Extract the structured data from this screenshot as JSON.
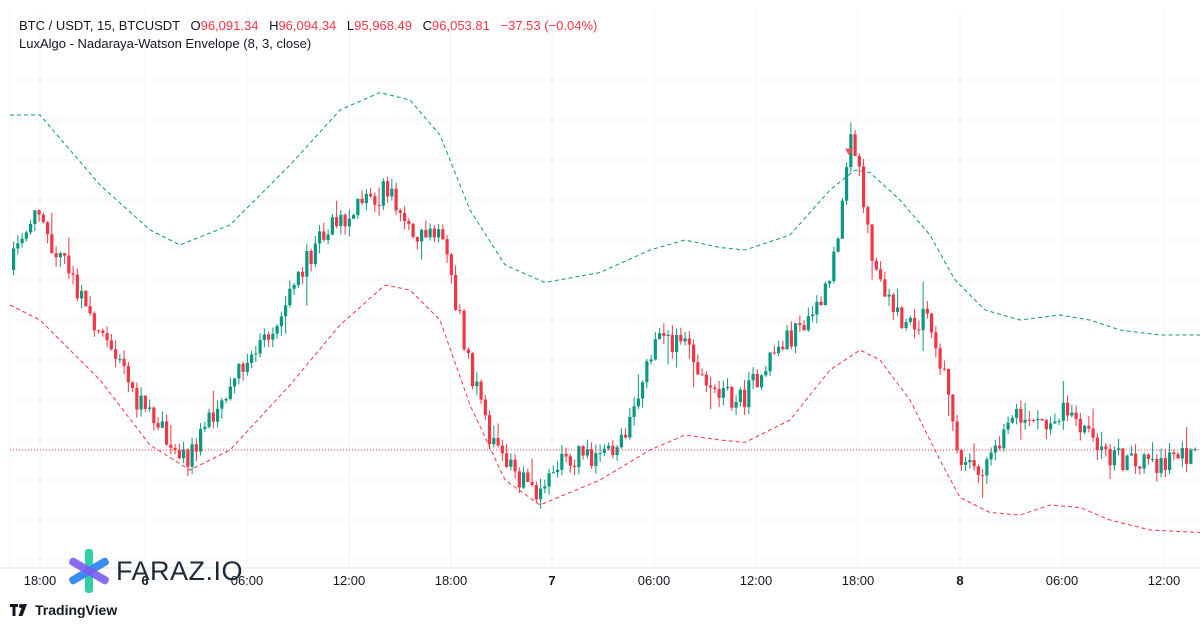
{
  "legend": {
    "symbol": "BTC / USDT, 15, BTCUSDT",
    "o_label": "O",
    "o_val": "96,091.34",
    "h_label": "H",
    "h_val": "96,094.34",
    "l_label": "L",
    "l_val": "95,968.49",
    "c_label": "C",
    "c_val": "96,053.81",
    "change": "−37.53 (−0.04%)",
    "indicator": "LuxAlgo - Nadaraya-Watson Envelope (8, 3, close)"
  },
  "watermark": {
    "brand": "FARAZ.IO"
  },
  "footer": {
    "brand": "TradingView"
  },
  "chart_data": {
    "type": "candlestick",
    "title": "BTC / USDT, 15, BTCUSDT",
    "xlabel": "",
    "ylabel": "",
    "x_range": [
      0,
      1200
    ],
    "y_range": [
      0,
      1
    ],
    "x_ticks": [
      {
        "x": 40,
        "label": "18:00",
        "bold": false
      },
      {
        "x": 145,
        "label": "6",
        "bold": true
      },
      {
        "x": 247,
        "label": "06:00",
        "bold": false
      },
      {
        "x": 349,
        "label": "12:00",
        "bold": false
      },
      {
        "x": 451,
        "label": "18:00",
        "bold": false
      },
      {
        "x": 552,
        "label": "7",
        "bold": true
      },
      {
        "x": 654,
        "label": "06:00",
        "bold": false
      },
      {
        "x": 756,
        "label": "12:00",
        "bold": false
      },
      {
        "x": 858,
        "label": "18:00",
        "bold": false
      },
      {
        "x": 960,
        "label": "8",
        "bold": true
      },
      {
        "x": 1062,
        "label": "06:00",
        "bold": false
      },
      {
        "x": 1164,
        "label": "12:00",
        "bold": false
      }
    ],
    "path_keys": [
      [
        10,
        0.58
      ],
      [
        40,
        0.69
      ],
      [
        85,
        0.52
      ],
      [
        140,
        0.32
      ],
      [
        190,
        0.2
      ],
      [
        240,
        0.37
      ],
      [
        275,
        0.45
      ],
      [
        320,
        0.64
      ],
      [
        355,
        0.7
      ],
      [
        390,
        0.74
      ],
      [
        420,
        0.65
      ],
      [
        445,
        0.66
      ],
      [
        470,
        0.4
      ],
      [
        495,
        0.23
      ],
      [
        520,
        0.17
      ],
      [
        540,
        0.12
      ],
      [
        560,
        0.2
      ],
      [
        590,
        0.21
      ],
      [
        620,
        0.21
      ],
      [
        645,
        0.37
      ],
      [
        665,
        0.45
      ],
      [
        690,
        0.42
      ],
      [
        715,
        0.33
      ],
      [
        745,
        0.32
      ],
      [
        770,
        0.4
      ],
      [
        800,
        0.46
      ],
      [
        820,
        0.51
      ],
      [
        840,
        0.62
      ],
      [
        855,
        0.86
      ],
      [
        865,
        0.73
      ],
      [
        880,
        0.55
      ],
      [
        905,
        0.48
      ],
      [
        930,
        0.48
      ],
      [
        950,
        0.34
      ],
      [
        962,
        0.19
      ],
      [
        985,
        0.19
      ],
      [
        1000,
        0.23
      ],
      [
        1025,
        0.3
      ],
      [
        1050,
        0.28
      ],
      [
        1072,
        0.3
      ],
      [
        1090,
        0.26
      ],
      [
        1110,
        0.21
      ],
      [
        1140,
        0.19
      ],
      [
        1170,
        0.2
      ],
      [
        1200,
        0.21
      ]
    ],
    "upper_band": [
      [
        10,
        0.89
      ],
      [
        40,
        0.89
      ],
      [
        100,
        0.75
      ],
      [
        150,
        0.66
      ],
      [
        180,
        0.63
      ],
      [
        230,
        0.67
      ],
      [
        290,
        0.79
      ],
      [
        340,
        0.9
      ],
      [
        380,
        0.935
      ],
      [
        410,
        0.92
      ],
      [
        440,
        0.85
      ],
      [
        470,
        0.7
      ],
      [
        505,
        0.59
      ],
      [
        545,
        0.555
      ],
      [
        600,
        0.575
      ],
      [
        650,
        0.62
      ],
      [
        685,
        0.64
      ],
      [
        720,
        0.625
      ],
      [
        745,
        0.62
      ],
      [
        790,
        0.65
      ],
      [
        830,
        0.74
      ],
      [
        855,
        0.78
      ],
      [
        870,
        0.775
      ],
      [
        900,
        0.72
      ],
      [
        930,
        0.65
      ],
      [
        955,
        0.56
      ],
      [
        985,
        0.5
      ],
      [
        1020,
        0.48
      ],
      [
        1060,
        0.49
      ],
      [
        1090,
        0.48
      ],
      [
        1120,
        0.46
      ],
      [
        1160,
        0.45
      ],
      [
        1200,
        0.45
      ]
    ],
    "lower_band": [
      [
        10,
        0.51
      ],
      [
        40,
        0.48
      ],
      [
        100,
        0.36
      ],
      [
        150,
        0.23
      ],
      [
        190,
        0.18
      ],
      [
        230,
        0.22
      ],
      [
        290,
        0.35
      ],
      [
        340,
        0.47
      ],
      [
        385,
        0.55
      ],
      [
        410,
        0.54
      ],
      [
        440,
        0.48
      ],
      [
        470,
        0.31
      ],
      [
        505,
        0.16
      ],
      [
        540,
        0.11
      ],
      [
        600,
        0.16
      ],
      [
        650,
        0.22
      ],
      [
        685,
        0.25
      ],
      [
        720,
        0.24
      ],
      [
        745,
        0.235
      ],
      [
        790,
        0.28
      ],
      [
        830,
        0.38
      ],
      [
        860,
        0.42
      ],
      [
        880,
        0.4
      ],
      [
        910,
        0.32
      ],
      [
        940,
        0.2
      ],
      [
        960,
        0.125
      ],
      [
        990,
        0.095
      ],
      [
        1020,
        0.09
      ],
      [
        1050,
        0.11
      ],
      [
        1080,
        0.105
      ],
      [
        1110,
        0.08
      ],
      [
        1150,
        0.06
      ],
      [
        1200,
        0.055
      ]
    ],
    "last_price_level": 0.22,
    "signal_marker": {
      "x": 849,
      "y": 0.815
    }
  }
}
